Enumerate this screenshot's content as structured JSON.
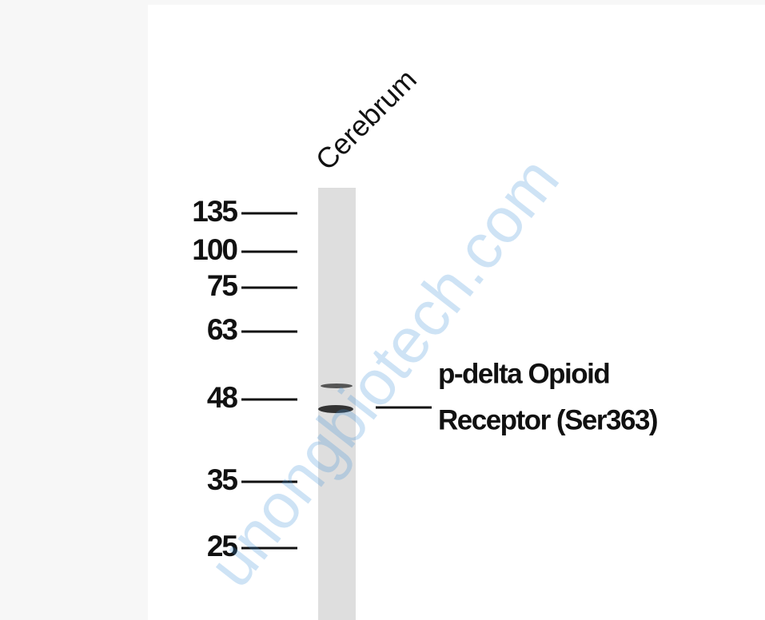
{
  "lane_label": "Cerebrum",
  "markers": [
    "135",
    "100",
    "75",
    "63",
    "48",
    "35",
    "25"
  ],
  "band_label": [
    "p-delta Opioid",
    "Receptor (Ser363)"
  ],
  "watermark": "unongbiotech.com"
}
